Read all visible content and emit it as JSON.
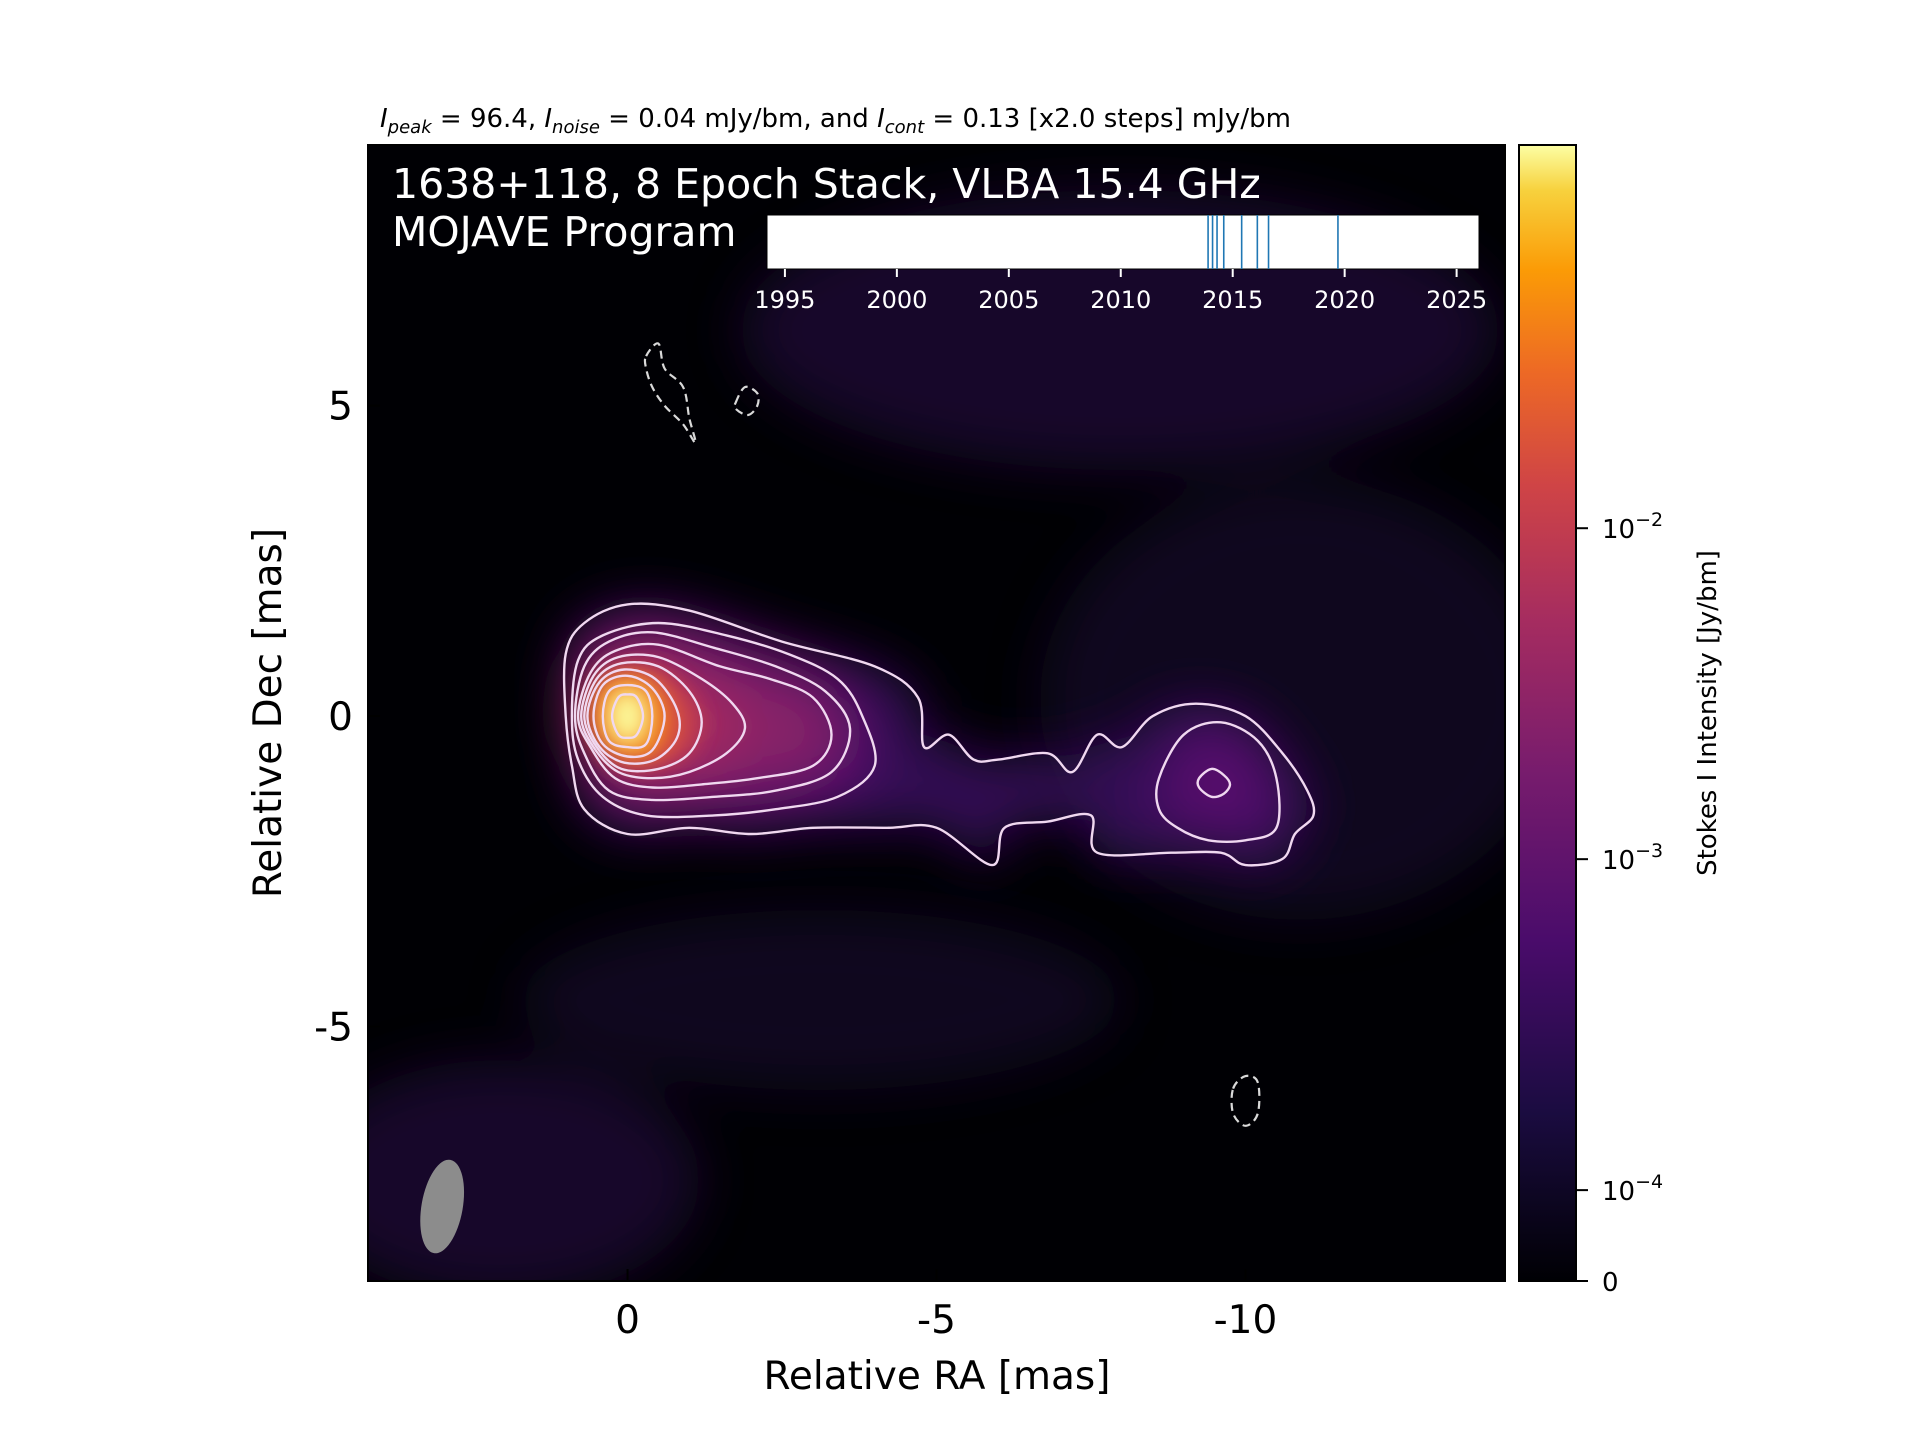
{
  "header": {
    "peak_label": "I",
    "peak_sub": "peak",
    "peak_value": " = 96.4, ",
    "noise_label": "I",
    "noise_sub": "noise",
    "noise_value": " = 0.04 mJy/bm, and ",
    "cont_label": "I",
    "cont_sub": "cont",
    "cont_value": " = 0.13 [x2.0 steps] mJy/bm"
  },
  "overlay": {
    "title_line1": "1638+118, 8 Epoch Stack, VLBA 15.4 GHz",
    "title_line2": "MOJAVE Program"
  },
  "colors": {
    "background": "#000004",
    "contour": "#f0d8f0",
    "beam": "#8c8c8c",
    "epoch_line": "#1f77b4"
  },
  "chart_data": {
    "type": "heatmap",
    "xlabel": "Relative RA [mas]",
    "ylabel": "Relative Dec [mas]",
    "x_ticks": [
      0,
      -5,
      -10
    ],
    "x_tick_labels": [
      "0",
      "-5",
      "-10"
    ],
    "y_ticks": [
      5,
      0,
      -5
    ],
    "y_tick_labels": [
      "5",
      "0",
      "-5"
    ],
    "xlim": [
      4.2,
      -14.2
    ],
    "ylim": [
      -9.1,
      9.2
    ],
    "colormap": "inferno",
    "colorbar": {
      "label": "Stokes I Intensity [Jy/bm]",
      "scale": "log",
      "ticks": [
        0,
        0.0001,
        0.001,
        0.01
      ],
      "tick_base": [
        "0",
        "10",
        "10",
        "10"
      ],
      "tick_exp": [
        "",
        "−4",
        "−3",
        "−2"
      ]
    },
    "components": [
      {
        "ra": 0.0,
        "dec": 0.0,
        "flux": 0.0964
      },
      {
        "ra": -3.0,
        "dec": -0.3,
        "flux": 0.0018
      },
      {
        "ra": -9.6,
        "dec": -1.1,
        "flux": 0.00045
      }
    ],
    "positive_contours": [
      {
        "level": 0.00013,
        "ra": [
          1.0,
          1.0,
          0.7,
          0.0,
          -1.0,
          -2.5,
          -4.0,
          -4.7,
          -4.8,
          -5.2,
          -5.6,
          -6.0,
          -6.8,
          -7.2,
          -7.6,
          -8.0,
          -8.5,
          -9.2,
          -10.0,
          -10.6,
          -11.0,
          -11.1,
          -10.8,
          -10.6,
          -10.0,
          -9.6,
          -8.8,
          -7.6,
          -7.5,
          -6.8,
          -6.1,
          -5.9,
          -5.0,
          -4.2,
          -3.0,
          -2.0,
          -1.0,
          0.0,
          0.7,
          0.9
        ],
        "dec": [
          0.0,
          1.0,
          1.5,
          1.8,
          1.7,
          1.2,
          0.8,
          0.3,
          -0.5,
          -0.3,
          -0.7,
          -0.7,
          -0.6,
          -0.9,
          -0.3,
          -0.5,
          0.0,
          0.2,
          0.0,
          -0.6,
          -1.2,
          -1.6,
          -1.9,
          -2.3,
          -2.4,
          -2.2,
          -2.2,
          -2.2,
          -1.6,
          -1.7,
          -1.8,
          -2.4,
          -1.8,
          -1.8,
          -1.8,
          -1.9,
          -1.8,
          -1.9,
          -1.5,
          -0.8
        ]
      },
      {
        "level": 0.00026,
        "ra": [
          0.9,
          0.8,
          0.4,
          -0.5,
          -1.6,
          -2.6,
          -3.4,
          -3.8,
          -4.0,
          -3.4,
          -2.4,
          -1.4,
          -0.3,
          0.4,
          0.8
        ],
        "dec": [
          0.0,
          0.9,
          1.3,
          1.5,
          1.3,
          1.0,
          0.6,
          0.0,
          -0.8,
          -1.3,
          -1.5,
          -1.6,
          -1.6,
          -1.3,
          -0.7
        ]
      },
      {
        "level": 0.00026,
        "ra": [
          -8.6,
          -9.0,
          -9.6,
          -10.2,
          -10.5,
          -10.5,
          -10.0,
          -9.4,
          -8.9,
          -8.6
        ],
        "dec": [
          -1.0,
          -0.3,
          -0.1,
          -0.4,
          -1.0,
          -1.8,
          -2.0,
          -2.0,
          -1.8,
          -1.5
        ]
      },
      {
        "level": 0.00052,
        "ra": [
          0.85,
          0.7,
          0.3,
          -0.4,
          -1.4,
          -2.4,
          -3.2,
          -3.6,
          -3.3,
          -2.4,
          -1.4,
          -0.4,
          0.3,
          0.7
        ],
        "dec": [
          0.0,
          0.8,
          1.2,
          1.35,
          1.1,
          0.8,
          0.4,
          -0.2,
          -0.9,
          -1.2,
          -1.3,
          -1.35,
          -1.2,
          -0.6
        ]
      },
      {
        "level": 0.00104,
        "ra": [
          0.8,
          0.6,
          0.2,
          -0.5,
          -1.5,
          -2.3,
          -3.0,
          -3.3,
          -3.0,
          -2.1,
          -1.2,
          -0.4,
          0.2,
          0.6
        ],
        "dec": [
          0.0,
          0.7,
          1.05,
          1.15,
          0.8,
          0.6,
          0.3,
          -0.3,
          -0.8,
          -1.0,
          -1.1,
          -1.15,
          -1.0,
          -0.5
        ]
      },
      {
        "level": 0.00208,
        "ra": [
          0.75,
          0.55,
          0.15,
          -0.5,
          -1.2,
          -1.7,
          -1.9,
          -1.6,
          -1.0,
          -0.4,
          0.15,
          0.55
        ],
        "dec": [
          0.0,
          0.65,
          0.95,
          0.95,
          0.6,
          0.2,
          -0.2,
          -0.6,
          -0.9,
          -1.0,
          -0.9,
          -0.5
        ]
      },
      {
        "level": 0.00416,
        "ra": [
          0.7,
          0.5,
          0.1,
          -0.5,
          -1.0,
          -1.2,
          -1.0,
          -0.5,
          0.1,
          0.5
        ],
        "dec": [
          0.0,
          0.6,
          0.85,
          0.8,
          0.4,
          -0.1,
          -0.6,
          -0.85,
          -0.85,
          -0.5
        ]
      },
      {
        "level": 0.00832,
        "ra": [
          0.65,
          0.45,
          0.05,
          -0.45,
          -0.8,
          -0.8,
          -0.45,
          0.05,
          0.45
        ],
        "dec": [
          0.0,
          0.55,
          0.75,
          0.6,
          0.1,
          -0.35,
          -0.7,
          -0.75,
          -0.5
        ]
      },
      {
        "level": 0.01664,
        "ra": [
          0.55,
          0.4,
          0.0,
          -0.4,
          -0.6,
          -0.4,
          0.0,
          0.4
        ],
        "dec": [
          0.0,
          0.5,
          0.65,
          0.45,
          0.0,
          -0.55,
          -0.65,
          -0.45
        ]
      },
      {
        "level": 0.03328,
        "ra": [
          0.4,
          0.3,
          0.0,
          -0.3,
          -0.4,
          -0.3,
          0.0,
          0.3
        ],
        "dec": [
          0.0,
          0.4,
          0.5,
          0.4,
          0.0,
          -0.45,
          -0.5,
          -0.4
        ]
      },
      {
        "level": 0.06656,
        "ra": [
          0.25,
          0.15,
          0.0,
          -0.15,
          -0.25,
          -0.15,
          0.0,
          0.15
        ],
        "dec": [
          0.0,
          0.3,
          0.35,
          0.3,
          0.0,
          -0.3,
          -0.35,
          -0.3
        ]
      },
      {
        "level": 0.00052,
        "ra": [
          -9.25,
          -9.45,
          -9.65,
          -9.75,
          -9.65,
          -9.45,
          -9.25
        ],
        "dec": [
          -1.0,
          -0.85,
          -0.95,
          -1.1,
          -1.25,
          -1.3,
          -1.15
        ]
      }
    ],
    "negative_contours": [
      {
        "ra": [
          -0.3,
          -0.5,
          -0.6,
          -0.9,
          -1.0,
          -1.1,
          -0.9,
          -0.6,
          -0.4,
          -0.3
        ],
        "dec": [
          5.8,
          6.0,
          5.6,
          5.3,
          4.8,
          4.4,
          4.7,
          5.0,
          5.3,
          5.6
        ]
      },
      {
        "ra": [
          -1.75,
          -1.9,
          -2.1,
          -2.1,
          -1.95,
          -1.75
        ],
        "dec": [
          5.05,
          5.3,
          5.2,
          5.0,
          4.85,
          4.95
        ]
      },
      {
        "ra": [
          -9.8,
          -10.0,
          -10.2,
          -10.2,
          -10.0,
          -9.8
        ],
        "dec": [
          -6.0,
          -5.8,
          -5.9,
          -6.4,
          -6.6,
          -6.4
        ]
      }
    ],
    "beam": {
      "ra": 3.0,
      "dec": -7.9,
      "major_mas": 1.15,
      "minor_mas": 0.5,
      "pa_deg": -10
    },
    "epoch_timeline": {
      "xlim": [
        1994.2,
        2026.0
      ],
      "ticks": [
        1995,
        2000,
        2005,
        2010,
        2015,
        2020,
        2025
      ],
      "tick_labels": [
        "1995",
        "2000",
        "2005",
        "2010",
        "2015",
        "2020",
        "2025"
      ],
      "epochs": [
        2013.9,
        2014.1,
        2014.3,
        2014.6,
        2015.4,
        2016.1,
        2016.6,
        2019.7
      ]
    }
  }
}
